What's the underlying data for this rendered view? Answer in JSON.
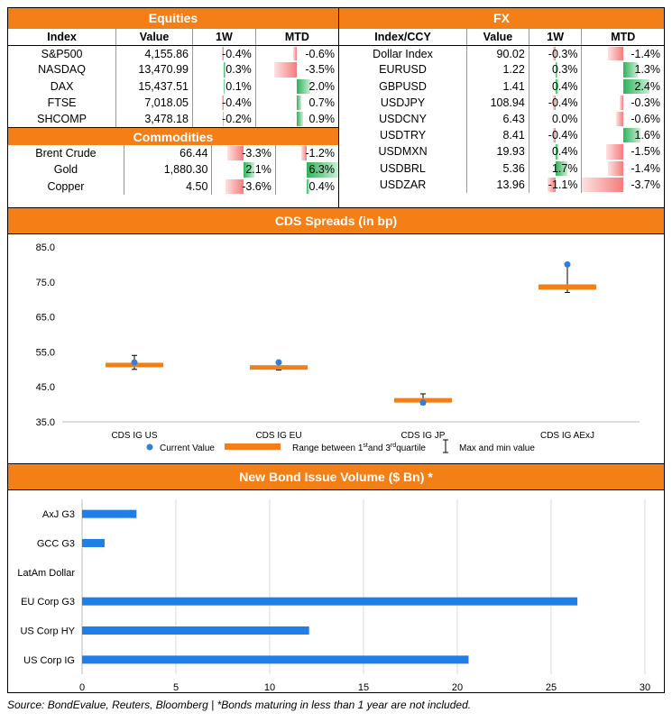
{
  "equities": {
    "title": "Equities",
    "headers": [
      "Index",
      "Value",
      "1W",
      "MTD"
    ],
    "rows": [
      {
        "name": "S&P500",
        "value": "4,155.86",
        "w1": -0.4,
        "w1_label": "-0.4%",
        "mtd": -0.6,
        "mtd_label": "-0.6%"
      },
      {
        "name": "NASDAQ",
        "value": "13,470.99",
        "w1": 0.3,
        "w1_label": "0.3%",
        "mtd": -3.5,
        "mtd_label": "-3.5%"
      },
      {
        "name": "DAX",
        "value": "15,437.51",
        "w1": 0.1,
        "w1_label": "0.1%",
        "mtd": 2.0,
        "mtd_label": "2.0%"
      },
      {
        "name": "FTSE",
        "value": "7,018.05",
        "w1": -0.4,
        "w1_label": "-0.4%",
        "mtd": 0.7,
        "mtd_label": "0.7%"
      },
      {
        "name": "SHCOMP",
        "value": "3,478.18",
        "w1": -0.2,
        "w1_label": "-0.2%",
        "mtd": 0.9,
        "mtd_label": "0.9%"
      }
    ]
  },
  "commodities": {
    "title": "Commodities",
    "rows": [
      {
        "name": "Brent Crude",
        "value": "66.44",
        "w1": -3.3,
        "w1_label": "-3.3%",
        "mtd": -1.2,
        "mtd_label": "-1.2%"
      },
      {
        "name": "Gold",
        "value": "1,880.30",
        "w1": 2.1,
        "w1_label": "2.1%",
        "mtd": 6.3,
        "mtd_label": "6.3%"
      },
      {
        "name": "Copper",
        "value": "4.50",
        "w1": -3.6,
        "w1_label": "-3.6%",
        "mtd": 0.4,
        "mtd_label": "0.4%"
      }
    ]
  },
  "fx": {
    "title": "FX",
    "headers": [
      "Index/CCY",
      "Value",
      "1W",
      "MTD"
    ],
    "rows": [
      {
        "name": "Dollar Index",
        "value": "90.02",
        "w1": -0.3,
        "w1_label": "-0.3%",
        "mtd": -1.4,
        "mtd_label": "-1.4%"
      },
      {
        "name": "EURUSD",
        "value": "1.22",
        "w1": 0.3,
        "w1_label": "0.3%",
        "mtd": 1.3,
        "mtd_label": "1.3%"
      },
      {
        "name": "GBPUSD",
        "value": "1.41",
        "w1": 0.4,
        "w1_label": "0.4%",
        "mtd": 2.4,
        "mtd_label": "2.4%"
      },
      {
        "name": "USDJPY",
        "value": "108.94",
        "w1": -0.4,
        "w1_label": "-0.4%",
        "mtd": -0.3,
        "mtd_label": "-0.3%"
      },
      {
        "name": "USDCNY",
        "value": "6.43",
        "w1": 0.0,
        "w1_label": "0.0%",
        "mtd": -0.6,
        "mtd_label": "-0.6%"
      },
      {
        "name": "USDTRY",
        "value": "8.41",
        "w1": -0.4,
        "w1_label": "-0.4%",
        "mtd": 1.6,
        "mtd_label": "1.6%"
      },
      {
        "name": "USDMXN",
        "value": "19.93",
        "w1": 0.4,
        "w1_label": "0.4%",
        "mtd": -1.5,
        "mtd_label": "-1.5%"
      },
      {
        "name": "USDBRL",
        "value": "5.36",
        "w1": 1.7,
        "w1_label": "1.7%",
        "mtd": -1.4,
        "mtd_label": "-1.4%"
      },
      {
        "name": "USDZAR",
        "value": "13.96",
        "w1": -1.1,
        "w1_label": "-1.1%",
        "mtd": -3.7,
        "mtd_label": "-3.7%"
      }
    ]
  },
  "colors": {
    "header": "#F47F16",
    "current": "#2F7FE0",
    "range": "#F47F16",
    "bond": "#1F7FE8",
    "positive": "#2DB35A",
    "negative": "#F47C7C"
  },
  "chart_data": [
    {
      "type": "range",
      "title": "CDS Spreads (in bp)",
      "categories": [
        "CDS IG US",
        "CDS IG EU",
        "CDS IG JP",
        "CDS IG AExJ"
      ],
      "current": [
        52.0,
        52.0,
        40.5,
        80.0
      ],
      "q1": [
        50.8,
        50.3,
        40.7,
        72.8
      ],
      "q3": [
        51.9,
        51.2,
        41.8,
        74.3
      ],
      "min": [
        50.0,
        49.8,
        40.0,
        72.0
      ],
      "max": [
        54.0,
        52.2,
        43.0,
        80.0
      ],
      "ylim": [
        35,
        85
      ],
      "yticks": [
        "35.0",
        "45.0",
        "55.0",
        "65.0",
        "75.0",
        "85.0"
      ],
      "ytick_values": [
        35,
        45,
        55,
        65,
        75,
        85
      ],
      "legend": {
        "current": "Current Value",
        "range_pre": "Range between 1",
        "st": "st",
        "range_mid": " and 3",
        "rd": "rd",
        "range_post": " quartile",
        "minmax": "Max and min value"
      },
      "legend_position": "bottom"
    },
    {
      "type": "bar",
      "orientation": "horizontal",
      "title": "New Bond Issue Volume ($ Bn) *",
      "categories": [
        "AxJ G3",
        "GCC G3",
        "LatAm Dollar",
        "EU Corp G3",
        "US Corp HY",
        "US Corp IG"
      ],
      "values": [
        2.9,
        1.2,
        0,
        26.4,
        12.1,
        20.6
      ],
      "xlim": [
        0,
        30
      ],
      "xticks": [
        "0",
        "5",
        "10",
        "15",
        "20",
        "25",
        "30"
      ],
      "xtick_values": [
        0,
        5,
        10,
        15,
        20,
        25,
        30
      ],
      "grid": true
    }
  ],
  "footer": "Source: BondEvalue, Reuters, Bloomberg | *Bonds maturing in less than 1 year are not included."
}
